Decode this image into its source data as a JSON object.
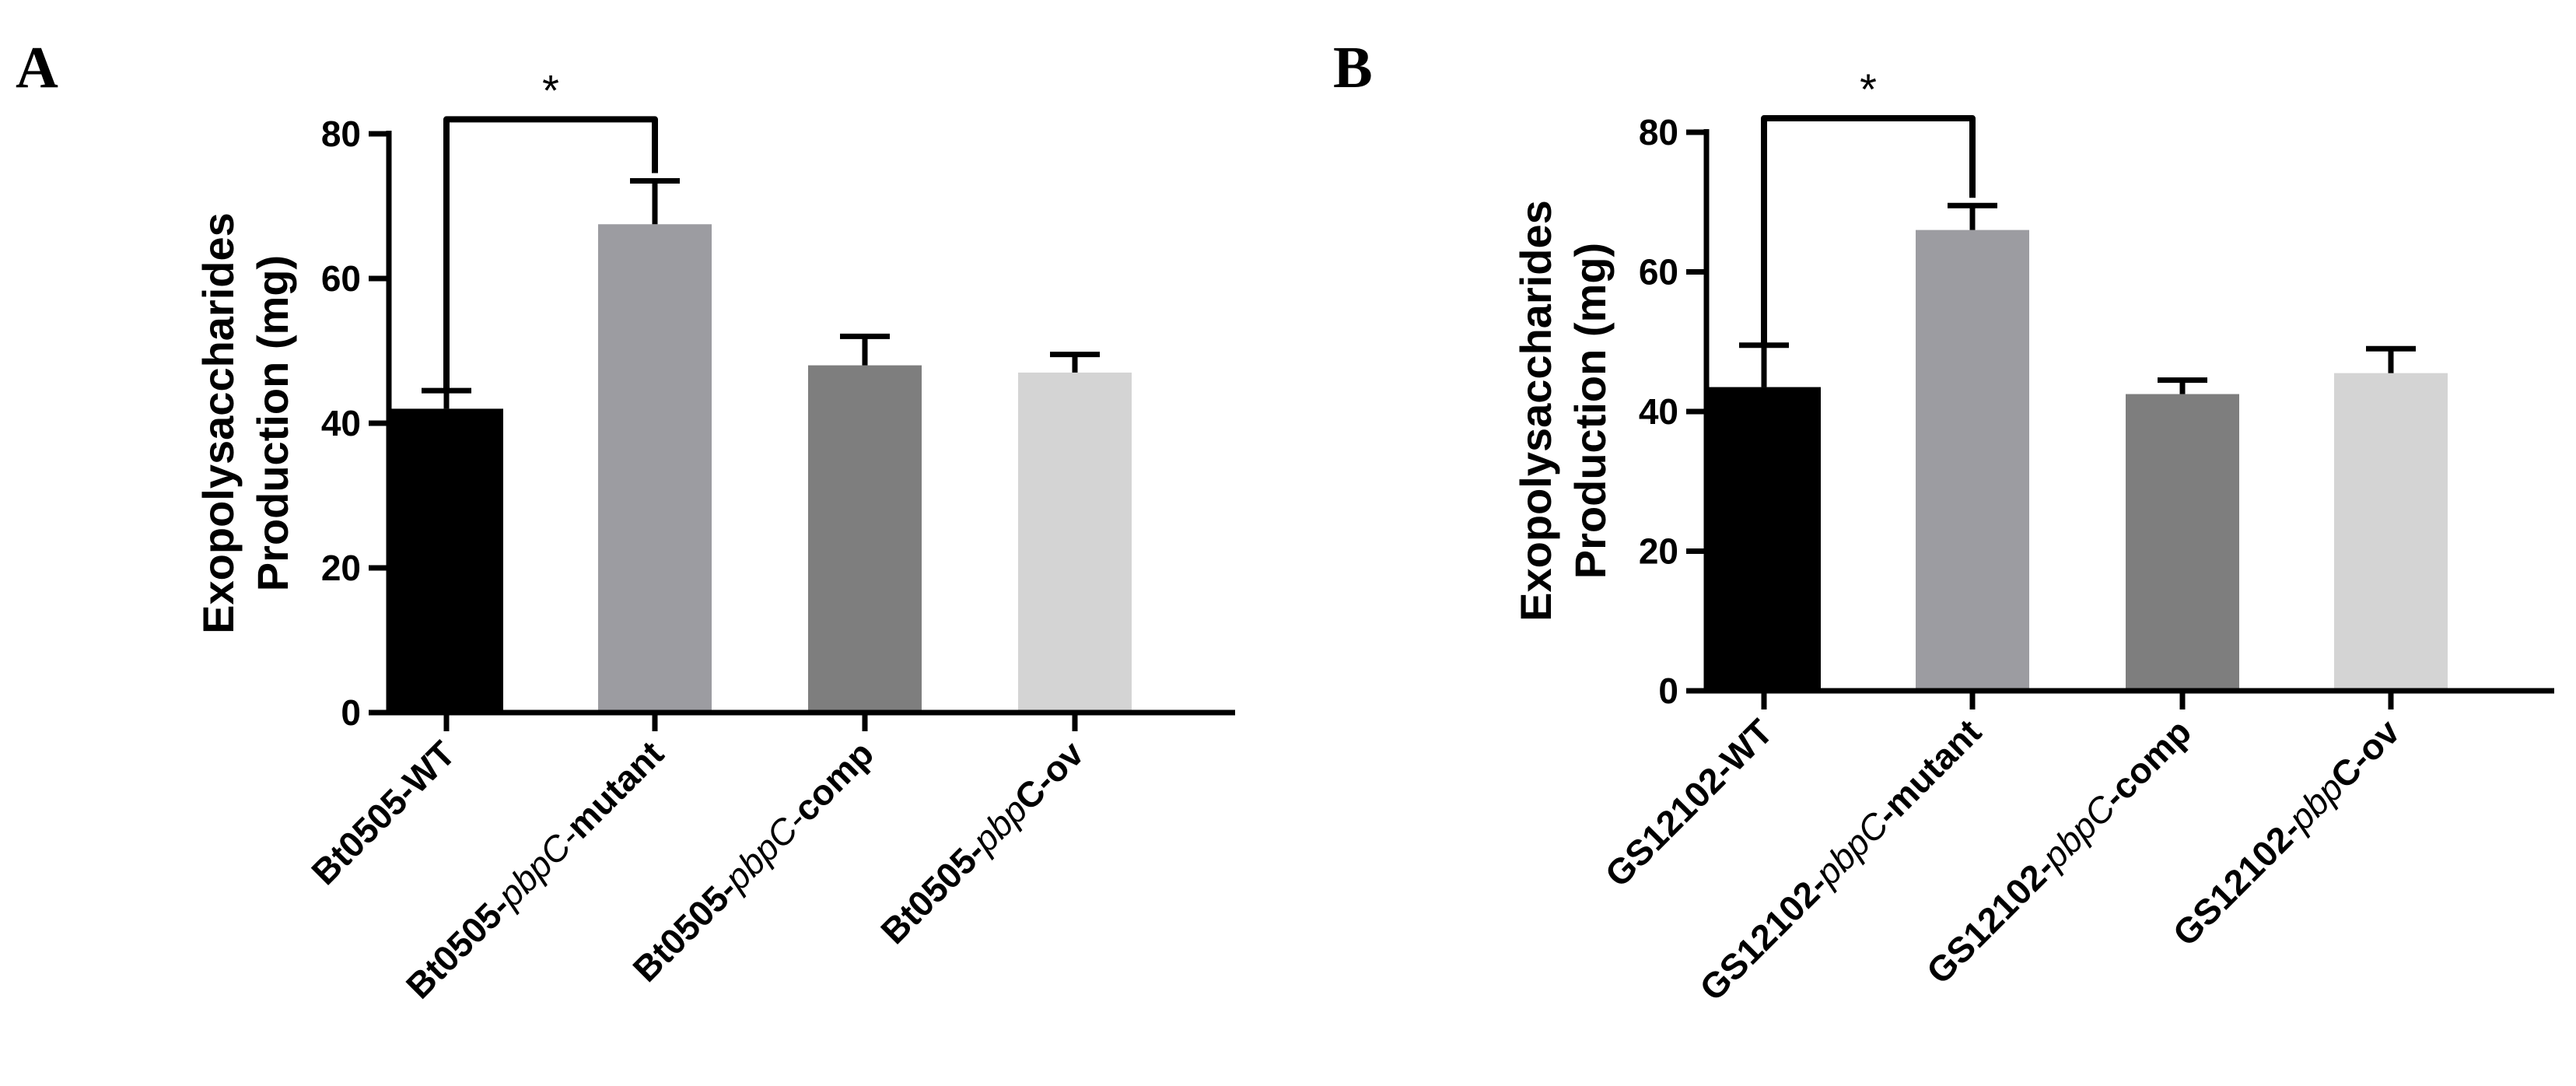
{
  "chart_data": [
    {
      "panel": "A",
      "type": "bar",
      "ylabel_lines": [
        "Exopolysaccharides",
        "Production (mg)"
      ],
      "ylim": [
        0,
        80
      ],
      "yticks": [
        0,
        20,
        40,
        60,
        80
      ],
      "categories": [
        {
          "label_parts": [
            {
              "t": "Bt0505-WT",
              "i": false
            }
          ]
        },
        {
          "label_parts": [
            {
              "t": "Bt0505-",
              "i": false
            },
            {
              "t": "pbpC-",
              "i": true
            },
            {
              "t": "mutant",
              "i": false
            }
          ]
        },
        {
          "label_parts": [
            {
              "t": "Bt0505-",
              "i": false
            },
            {
              "t": "pbpC-",
              "i": true
            },
            {
              "t": "comp",
              "i": false
            }
          ]
        },
        {
          "label_parts": [
            {
              "t": "Bt0505-",
              "i": false
            },
            {
              "t": "pbp",
              "i": true
            },
            {
              "t": "C-ov",
              "i": false
            }
          ]
        }
      ],
      "values": [
        42,
        67.5,
        48,
        47
      ],
      "errors": [
        2.5,
        6,
        4,
        2.5
      ],
      "colors": [
        "#000000",
        "#9c9ca1",
        "#7e7e7e",
        "#d4d4d4"
      ],
      "significance": {
        "from": 0,
        "to": 1,
        "label": "*",
        "y": 82
      }
    },
    {
      "panel": "B",
      "type": "bar",
      "ylabel_lines": [
        "Exopolysaccharides",
        "Production (mg)"
      ],
      "ylim": [
        0,
        80
      ],
      "yticks": [
        0,
        20,
        40,
        60,
        80
      ],
      "categories": [
        {
          "label_parts": [
            {
              "t": "GS12102-WT",
              "i": false
            }
          ]
        },
        {
          "label_parts": [
            {
              "t": "GS12102-",
              "i": false
            },
            {
              "t": "pbpC",
              "i": true
            },
            {
              "t": "-mutant",
              "i": false
            }
          ]
        },
        {
          "label_parts": [
            {
              "t": "GS12102-",
              "i": false
            },
            {
              "t": "pbpC",
              "i": true
            },
            {
              "t": "-comp",
              "i": false
            }
          ]
        },
        {
          "label_parts": [
            {
              "t": "GS12102-",
              "i": false
            },
            {
              "t": "pbp",
              "i": true
            },
            {
              "t": "C-ov",
              "i": false
            }
          ]
        }
      ],
      "values": [
        43.5,
        66,
        42.5,
        45.5
      ],
      "errors": [
        6,
        3.5,
        2,
        3.5
      ],
      "colors": [
        "#000000",
        "#9c9ca1",
        "#7e7e7e",
        "#d4d4d4"
      ],
      "significance": {
        "from": 0,
        "to": 1,
        "label": "*",
        "y": 82
      }
    }
  ]
}
